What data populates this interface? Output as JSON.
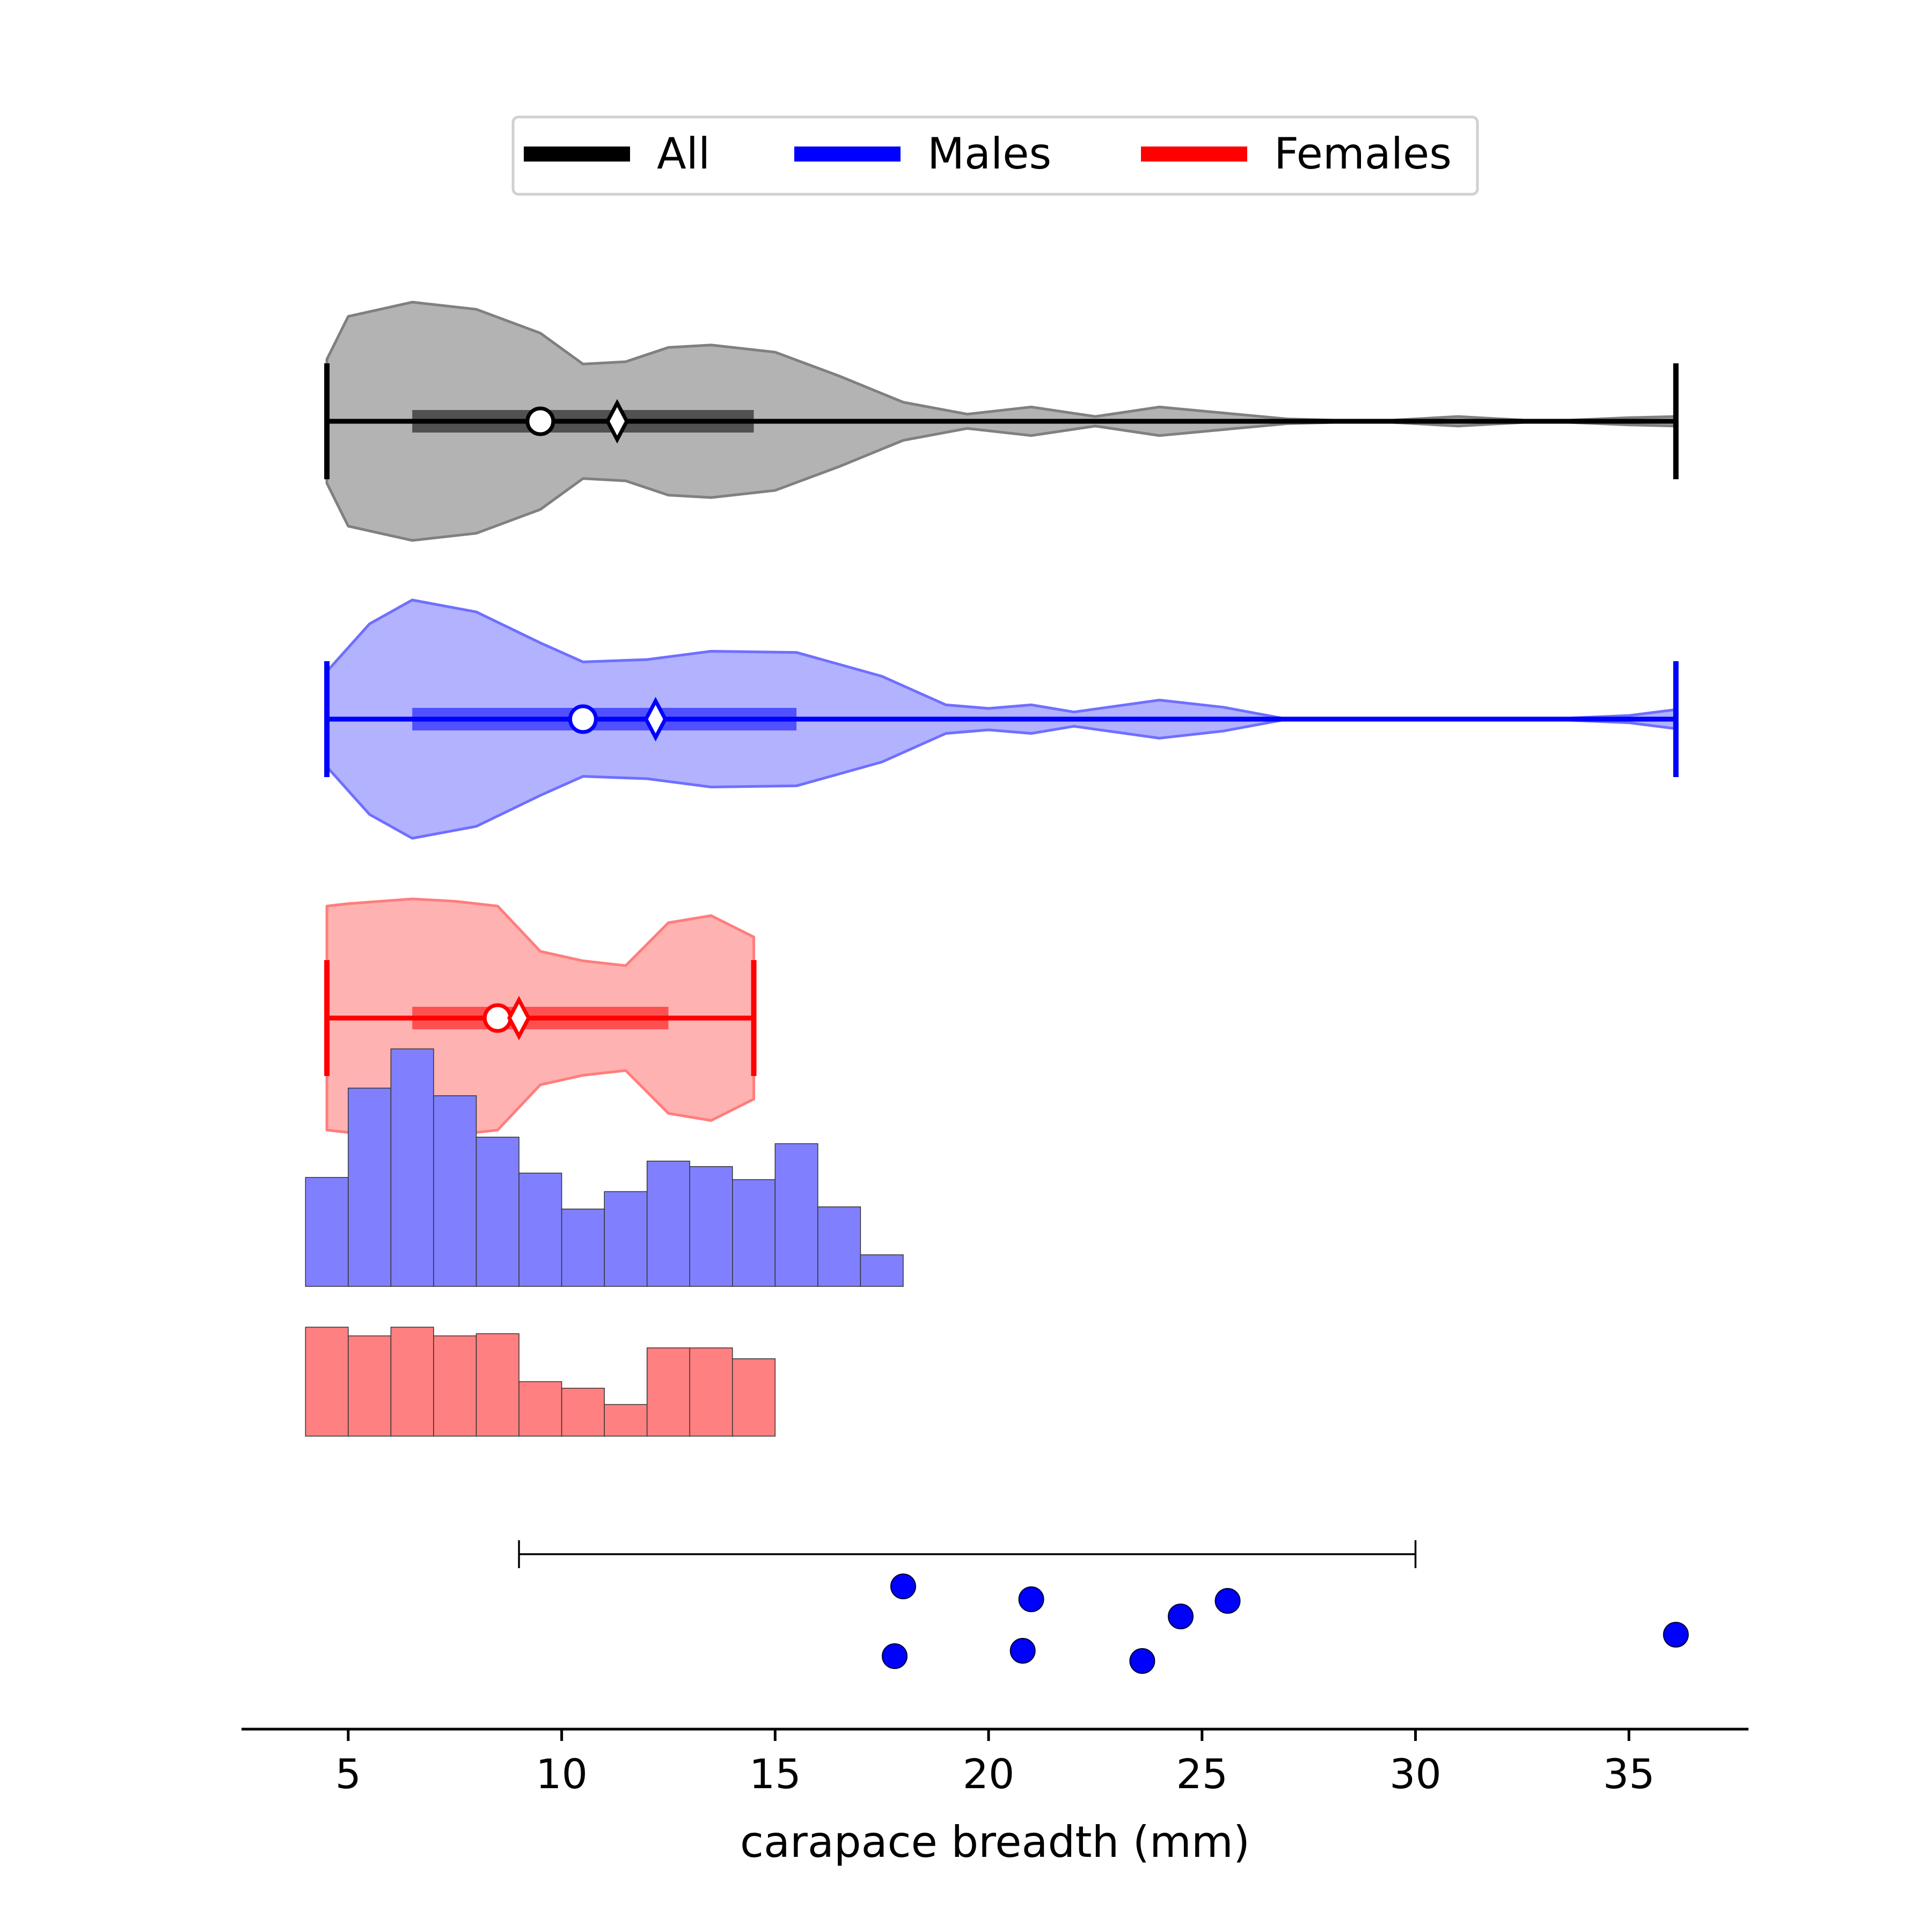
{
  "chart_data": {
    "type": "violin",
    "xlabel": "carapace breadth (mm)",
    "xlim": [
      2.5,
      37.8
    ],
    "xticks": [
      5,
      10,
      15,
      20,
      25,
      30,
      35
    ],
    "xtick_labels": [
      "5",
      "10",
      "15",
      "20",
      "25",
      "30",
      "35"
    ],
    "legend": {
      "placement": "top-center",
      "entries": [
        {
          "label": "All",
          "color": "#000000"
        },
        {
          "label": "Males",
          "color": "#0000ff"
        },
        {
          "label": "Females",
          "color": "#ff0000"
        }
      ]
    },
    "violins": [
      {
        "group": "All",
        "line_color": "#000000",
        "fill_color": "#808080",
        "fill_opacity": 0.6,
        "edge_color": "#808080",
        "min": 4.5,
        "max": 36.1,
        "q1": 6.5,
        "q3": 14.5,
        "median": 9.5,
        "mean": 11.3,
        "density": [
          [
            4.5,
            0.52
          ],
          [
            5,
            0.88
          ],
          [
            6.5,
            1.0
          ],
          [
            8,
            0.94
          ],
          [
            9.5,
            0.74
          ],
          [
            10.5,
            0.48
          ],
          [
            11.5,
            0.5
          ],
          [
            12.5,
            0.62
          ],
          [
            13.5,
            0.64
          ],
          [
            15,
            0.58
          ],
          [
            16.5,
            0.38
          ],
          [
            18,
            0.16
          ],
          [
            19.5,
            0.06
          ],
          [
            21,
            0.12
          ],
          [
            22.5,
            0.04
          ],
          [
            24,
            0.12
          ],
          [
            25.5,
            0.07
          ],
          [
            27,
            0.02
          ],
          [
            29,
            0.0
          ],
          [
            31,
            0.04
          ],
          [
            33,
            0.0
          ],
          [
            35,
            0.03
          ],
          [
            36.1,
            0.04
          ]
        ]
      },
      {
        "group": "Males",
        "line_color": "#0000ff",
        "fill_color": "#6666ff",
        "fill_opacity": 0.5,
        "edge_color": "#6f6fff",
        "min": 4.5,
        "max": 36.1,
        "q1": 6.5,
        "q3": 15.5,
        "median": 10.5,
        "mean": 12.2,
        "density": [
          [
            4.5,
            0.4
          ],
          [
            5.5,
            0.8
          ],
          [
            6.5,
            1.0
          ],
          [
            8,
            0.9
          ],
          [
            9.5,
            0.64
          ],
          [
            10.5,
            0.48
          ],
          [
            12,
            0.5
          ],
          [
            13.5,
            0.57
          ],
          [
            15.5,
            0.56
          ],
          [
            17.5,
            0.36
          ],
          [
            19,
            0.12
          ],
          [
            20,
            0.09
          ],
          [
            21,
            0.12
          ],
          [
            22,
            0.06
          ],
          [
            24,
            0.16
          ],
          [
            25.5,
            0.1
          ],
          [
            27,
            0.0
          ],
          [
            29,
            0.0
          ],
          [
            33,
            0.0
          ],
          [
            35,
            0.03
          ],
          [
            36.1,
            0.08
          ]
        ]
      },
      {
        "group": "Females",
        "line_color": "#ff0000",
        "fill_color": "#ff6666",
        "fill_opacity": 0.5,
        "edge_color": "#ff7d7d",
        "min": 4.5,
        "max": 14.5,
        "q1": 6.5,
        "q3": 12.5,
        "median": 8.5,
        "mean": 9.0,
        "density": [
          [
            4.5,
            0.94
          ],
          [
            5,
            0.96
          ],
          [
            6.5,
            1.0
          ],
          [
            7.5,
            0.98
          ],
          [
            8.5,
            0.94
          ],
          [
            9.5,
            0.56
          ],
          [
            10.5,
            0.48
          ],
          [
            11.5,
            0.44
          ],
          [
            12.5,
            0.8
          ],
          [
            13.5,
            0.86
          ],
          [
            14.5,
            0.68
          ]
        ]
      }
    ],
    "histograms": [
      {
        "group": "Males",
        "color": "#8080ff",
        "bin_edges": [
          4,
          5,
          6,
          7,
          8,
          9,
          10,
          11,
          12,
          13,
          14,
          15,
          16,
          17,
          18
        ],
        "counts": [
          1.0,
          1.82,
          2.18,
          1.75,
          1.37,
          1.04,
          0.71,
          0.87,
          1.15,
          1.1,
          0.98,
          1.31,
          0.73,
          0.29
        ]
      },
      {
        "group": "Females",
        "color": "#ff8080",
        "bin_edges": [
          4,
          5,
          6,
          7,
          8,
          9,
          10,
          11,
          12,
          13,
          14,
          15
        ],
        "counts": [
          1.0,
          0.92,
          1.0,
          0.92,
          0.94,
          0.5,
          0.44,
          0.29,
          0.81,
          0.81,
          0.71
        ]
      }
    ],
    "range_bar": {
      "from": 9,
      "to": 30
    },
    "points": {
      "color": "#0000ff",
      "values": [
        18.0,
        21.0,
        24.5,
        25.6,
        36.1,
        17.8,
        20.8,
        23.6
      ]
    }
  }
}
